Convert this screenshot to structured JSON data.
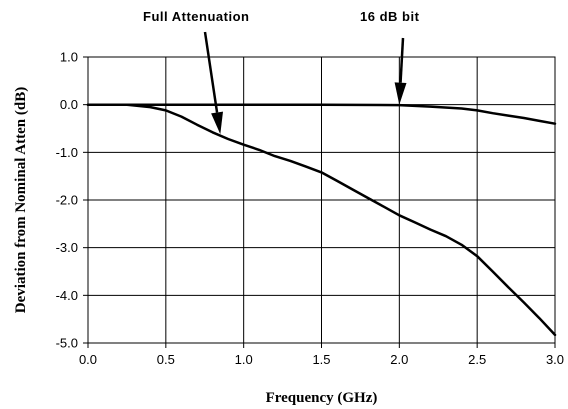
{
  "chart_data": {
    "type": "line",
    "title": "",
    "xlabel": "Frequency (GHz)",
    "ylabel": "Deviation from Nominal Atten (dB)",
    "xlim": [
      0.0,
      3.0
    ],
    "ylim": [
      -5.0,
      1.0
    ],
    "x_ticks": [
      0.0,
      0.5,
      1.0,
      1.5,
      2.0,
      2.5,
      3.0
    ],
    "y_ticks": [
      1.0,
      0.0,
      -1.0,
      -2.0,
      -3.0,
      -4.0,
      -5.0
    ],
    "x_tick_labels": [
      "0.0",
      "0.5",
      "1.0",
      "1.5",
      "2.0",
      "2.5",
      "3.0"
    ],
    "y_tick_labels": [
      "1.0",
      "0.0",
      "-1.0",
      "-2.0",
      "-3.0",
      "-4.0",
      "-5.0"
    ],
    "grid": true,
    "series": [
      {
        "points": [
          [
            0.0,
            0.0
          ],
          [
            0.25,
            0.0
          ],
          [
            0.4,
            -0.05
          ],
          [
            0.5,
            -0.12
          ],
          [
            0.6,
            -0.25
          ],
          [
            0.7,
            -0.42
          ],
          [
            0.8,
            -0.58
          ],
          [
            0.9,
            -0.72
          ],
          [
            1.0,
            -0.84
          ],
          [
            1.1,
            -0.95
          ],
          [
            1.2,
            -1.08
          ],
          [
            1.3,
            -1.18
          ],
          [
            1.4,
            -1.3
          ],
          [
            1.5,
            -1.42
          ],
          [
            1.6,
            -1.6
          ],
          [
            1.7,
            -1.78
          ],
          [
            1.8,
            -1.96
          ],
          [
            1.9,
            -2.14
          ],
          [
            2.0,
            -2.32
          ],
          [
            2.1,
            -2.47
          ],
          [
            2.2,
            -2.62
          ],
          [
            2.3,
            -2.76
          ],
          [
            2.4,
            -2.94
          ],
          [
            2.5,
            -3.18
          ],
          [
            2.6,
            -3.5
          ],
          [
            2.7,
            -3.83
          ],
          [
            2.8,
            -4.15
          ],
          [
            2.9,
            -4.48
          ],
          [
            3.0,
            -4.83
          ]
        ]
      },
      {
        "points": [
          [
            0.0,
            0.0
          ],
          [
            1.5,
            0.0
          ],
          [
            2.0,
            -0.01
          ],
          [
            2.2,
            -0.04
          ],
          [
            2.4,
            -0.08
          ],
          [
            2.5,
            -0.12
          ],
          [
            2.6,
            -0.18
          ],
          [
            2.7,
            -0.23
          ],
          [
            2.8,
            -0.28
          ],
          [
            2.9,
            -0.34
          ],
          [
            3.0,
            -0.4
          ]
        ]
      }
    ],
    "annotations": [
      {
        "text": "Full Attenuation",
        "arrow_to": [
          0.85,
          -0.62
        ]
      },
      {
        "text": "16 dB bit",
        "arrow_to": [
          2.0,
          0.0
        ]
      }
    ]
  }
}
